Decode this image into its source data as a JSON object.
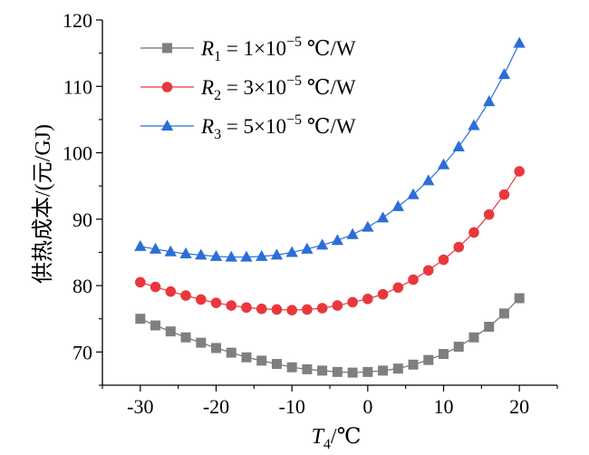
{
  "chart_data": {
    "type": "line",
    "title": "",
    "xlabel": {
      "var": "T",
      "sub": "4",
      "unit": "/℃"
    },
    "ylabel": "供热成本/(元/GJ)",
    "xlim": [
      -35,
      25
    ],
    "ylim": [
      65,
      120
    ],
    "xticks": [
      -30,
      -20,
      -10,
      0,
      10,
      20
    ],
    "yticks": [
      70,
      80,
      90,
      100,
      110,
      120
    ],
    "grid": false,
    "legend_position": "top-left",
    "x": [
      -30,
      -28,
      -26,
      -24,
      -22,
      -20,
      -18,
      -16,
      -14,
      -12,
      -10,
      -8,
      -6,
      -4,
      -2,
      0,
      2,
      4,
      6,
      8,
      10,
      12,
      14,
      16,
      18,
      20
    ],
    "series": [
      {
        "name": "R1 = 1×10−5 ℃/W",
        "legend": {
          "var": "R",
          "sub": "1",
          "text": " = 1×10",
          "sup": "−5",
          "unit": " ℃/W"
        },
        "marker": "square",
        "color": "#7f7f7f",
        "line_color": "#6f6f6f",
        "values": [
          75.0,
          74.0,
          73.1,
          72.2,
          71.4,
          70.6,
          69.9,
          69.2,
          68.7,
          68.2,
          67.7,
          67.4,
          67.2,
          67.0,
          66.9,
          67.0,
          67.2,
          67.5,
          68.1,
          68.8,
          69.7,
          70.8,
          72.2,
          73.8,
          75.8,
          78.1
        ]
      },
      {
        "name": "R2 = 3×10−5 ℃/W",
        "legend": {
          "var": "R",
          "sub": "2",
          "text": " = 3×10",
          "sup": "−5",
          "unit": " ℃/W"
        },
        "marker": "circle",
        "color": "#e8383d",
        "line_color": "#e8383d",
        "values": [
          80.5,
          79.8,
          79.1,
          78.5,
          77.9,
          77.4,
          77.0,
          76.7,
          76.5,
          76.4,
          76.3,
          76.4,
          76.6,
          77.0,
          77.5,
          78.0,
          78.7,
          79.7,
          80.9,
          82.3,
          83.9,
          85.8,
          88.0,
          90.7,
          93.7,
          97.2
        ]
      },
      {
        "name": "R3 = 5×10−5 ℃/W",
        "legend": {
          "var": "R",
          "sub": "3",
          "text": " = 5×10",
          "sup": "−5",
          "unit": " ℃/W"
        },
        "marker": "triangle",
        "color": "#2b6fd6",
        "line_color": "#2b6fd6",
        "values": [
          85.9,
          85.5,
          85.1,
          84.8,
          84.6,
          84.4,
          84.3,
          84.3,
          84.4,
          84.6,
          85.0,
          85.5,
          86.1,
          86.8,
          87.7,
          88.8,
          90.2,
          91.9,
          93.7,
          95.8,
          98.2,
          100.9,
          104.1,
          107.7,
          111.8,
          116.5
        ]
      }
    ]
  }
}
